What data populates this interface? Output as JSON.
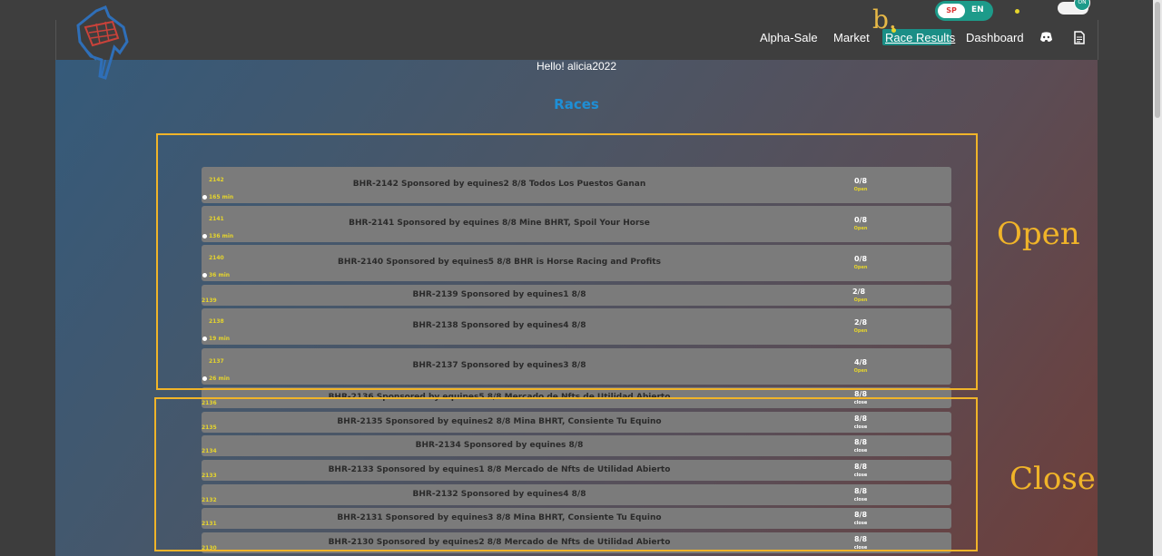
{
  "nav": {
    "items": [
      "Alpha-Sale",
      "Market",
      "Race Results",
      "Dashboard"
    ],
    "annotation_letter": "b."
  },
  "lang": {
    "sp": "SP",
    "en": "EN",
    "mode": "ON"
  },
  "greeting": "Hello! alicia2022",
  "heading": "Races",
  "races": [
    {
      "id": "2142",
      "time": "165 min",
      "title": "BHR-2142 Sponsored by equines2 8/8 Todos Los Puestos Ganan",
      "count": "0/8",
      "status": "Open"
    },
    {
      "id": "2141",
      "time": "136 min",
      "title": "BHR-2141 Sponsored by equines 8/8 Mine BHRT, Spoil Your Horse",
      "count": "0/8",
      "status": "Open"
    },
    {
      "id": "2140",
      "time": "36 min",
      "title": "BHR-2140 Sponsored by equines5 8/8 BHR is Horse Racing and Profits",
      "count": "0/8",
      "status": "Open"
    },
    {
      "id": "2139",
      "time": "",
      "title": "BHR-2139 Sponsored by equines1 8/8",
      "count": "2/8",
      "status": "Open"
    },
    {
      "id": "2138",
      "time": "19 min",
      "title": "BHR-2138 Sponsored by equines4 8/8",
      "count": "2/8",
      "status": "Open"
    },
    {
      "id": "2137",
      "time": "26 min",
      "title": "BHR-2137 Sponsored by equines3 8/8",
      "count": "4/8",
      "status": "Open"
    },
    {
      "id": "2136",
      "time": "",
      "title": "BHR-2136 Sponsored by equines5 8/8 Mercado de Nfts de Utilidad Abierto",
      "count": "8/8",
      "status": "close"
    },
    {
      "id": "2135",
      "time": "",
      "title": "BHR-2135 Sponsored by equines2 8/8 Mina BHRT, Consiente Tu Equino",
      "count": "8/8",
      "status": "close"
    },
    {
      "id": "2134",
      "time": "",
      "title": "BHR-2134 Sponsored by equines 8/8",
      "count": "8/8",
      "status": "close"
    },
    {
      "id": "2133",
      "time": "",
      "title": "BHR-2133 Sponsored by equines1 8/8 Mercado de Nfts de Utilidad Abierto",
      "count": "8/8",
      "status": "close"
    },
    {
      "id": "2132",
      "time": "",
      "title": "BHR-2132 Sponsored by equines4 8/8",
      "count": "8/8",
      "status": "close"
    },
    {
      "id": "2131",
      "time": "",
      "title": "BHR-2131 Sponsored by equines3 8/8 Mina BHRT, Consiente Tu Equino",
      "count": "8/8",
      "status": "close"
    },
    {
      "id": "2130",
      "time": "",
      "title": "BHR-2130 Sponsored by equines2 8/8 Mercado de Nfts de Utilidad Abierto",
      "count": "8/8",
      "status": "close"
    }
  ],
  "annotations": {
    "open": "Open",
    "close": "Close"
  },
  "colors": {
    "accent": "#1d9b8a",
    "highlight": "#f0b429",
    "heading": "#1e8fd6",
    "id_text": "#e6d52c"
  }
}
